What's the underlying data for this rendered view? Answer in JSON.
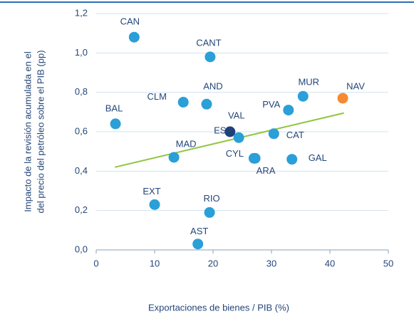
{
  "chart_data": {
    "type": "scatter",
    "xlabel": "Exportaciones de bienes / PIB (%)",
    "ylabel": [
      "Impacto de la revisión acumulada en el",
      "del precio del petróleo sobre el PIB (pp)"
    ],
    "labels": [
      "CAN",
      "CANT",
      "BAL",
      "CLM",
      "AND",
      "MUR",
      "NAV",
      "PVA",
      "VAL",
      "ESP",
      "CAT",
      "MAD",
      "CYL",
      "ARA",
      "GAL",
      "EXT",
      "RIO",
      "AST"
    ],
    "x": [
      6.5,
      19.5,
      3.3,
      14.9,
      18.9,
      35.4,
      42.2,
      32.9,
      22.9,
      24.4,
      30.4,
      13.3,
      27.0,
      27.2,
      33.5,
      10.0,
      19.4,
      17.4
    ],
    "y": [
      1.08,
      0.98,
      0.64,
      0.75,
      0.74,
      0.78,
      0.77,
      0.71,
      0.6,
      0.57,
      0.59,
      0.47,
      0.465,
      0.465,
      0.46,
      0.23,
      0.19,
      0.03
    ],
    "point_colors": [
      "#2a9fd8",
      "#2a9fd8",
      "#2a9fd8",
      "#2a9fd8",
      "#2a9fd8",
      "#2a9fd8",
      "#f58a32",
      "#2a9fd8",
      "#1f3f7a",
      "#2a9fd8",
      "#2a9fd8",
      "#2a9fd8",
      "#2a9fd8",
      "#2a9fd8",
      "#2a9fd8",
      "#2a9fd8",
      "#2a9fd8",
      "#2a9fd8"
    ],
    "trendline": {
      "x": [
        3.2,
        42.4
      ],
      "y": [
        0.42,
        0.695
      ],
      "color": "#8dc63f"
    },
    "xlim": [
      0,
      50
    ],
    "xticks": [
      0,
      10,
      20,
      30,
      40,
      50
    ],
    "ylim": [
      0,
      1.2
    ],
    "yticks": [
      {
        "value": 0,
        "label": "0,0"
      },
      {
        "value": 0.2,
        "label": "0,2"
      },
      {
        "value": 0.4,
        "label": "0,4"
      },
      {
        "value": 0.6,
        "label": "0,6"
      },
      {
        "value": 0.8,
        "label": "0,8"
      },
      {
        "value": 1.0,
        "label": "1,0"
      },
      {
        "value": 1.2,
        "label": "1,2"
      }
    ],
    "grid": true
  }
}
